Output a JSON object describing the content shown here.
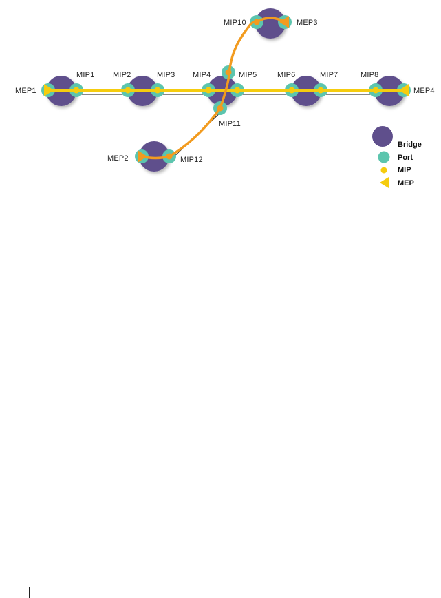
{
  "colors": {
    "bridge": "#5f4f8c",
    "port": "#5cc5ae",
    "mip": "#f5cc0e",
    "mep": "#f5cc0e",
    "maintenance_path": "#f29b1f",
    "main_path": "#f5cc0e",
    "link": "#111111"
  },
  "labels": {
    "mep1": "MEP1",
    "mep2": "MEP2",
    "mep3": "MEP3",
    "mep4": "MEP4",
    "mip1": "MIP1",
    "mip2": "MIP2",
    "mip3": "MIP3",
    "mip4": "MIP4",
    "mip5": "MIP5",
    "mip6": "MIP6",
    "mip7": "MIP7",
    "mip8": "MIP8",
    "mip10": "MIP10",
    "mip11": "MIP11",
    "mip12": "MIP12"
  },
  "legend": {
    "bridge": "Bridge",
    "port": "Port",
    "mip": "MIP",
    "mep": "MEP"
  }
}
